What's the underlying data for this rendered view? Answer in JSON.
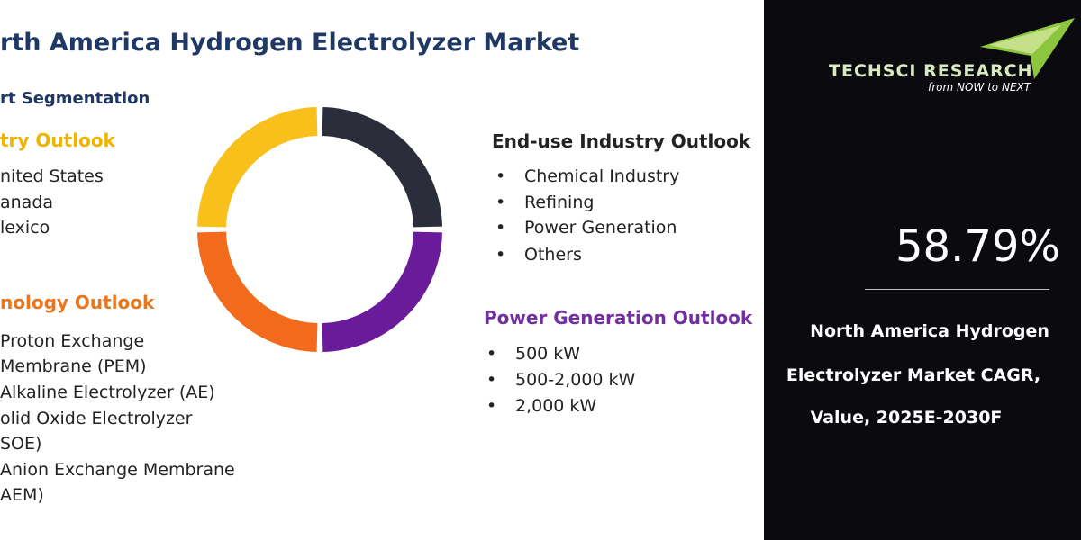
{
  "header": {
    "title": "rth America Hydrogen Electrolyzer Market",
    "subtitle": "rt Segmentation"
  },
  "sections": [
    {
      "title": "try Outlook",
      "items": [
        "nited States",
        "anada",
        "lexico"
      ]
    },
    {
      "title": "nology Outlook",
      "items": [
        "Proton Exchange",
        "Membrane (PEM)",
        "Alkaline Electrolyzer (AE)",
        "olid Oxide Electrolyzer",
        "SOE)",
        "Anion Exchange Membrane",
        "AEM)"
      ]
    },
    {
      "title": "End-use Industry Outlook",
      "items": [
        "Chemical Industry",
        "Refining",
        "Power Generation",
        "Others"
      ]
    },
    {
      "title": "Power Generation Outlook",
      "items": [
        "500 kW",
        "500-2,000 kW",
        "2,000 kW"
      ]
    }
  ],
  "sidebar": {
    "brand": "TECHSCI RESEARCH",
    "tagline": "from NOW to NEXT",
    "stat": "58.79%",
    "caption": [
      "North America Hydrogen",
      "Electrolyzer Market CAGR,",
      "Value, 2025E-2030F"
    ]
  }
}
